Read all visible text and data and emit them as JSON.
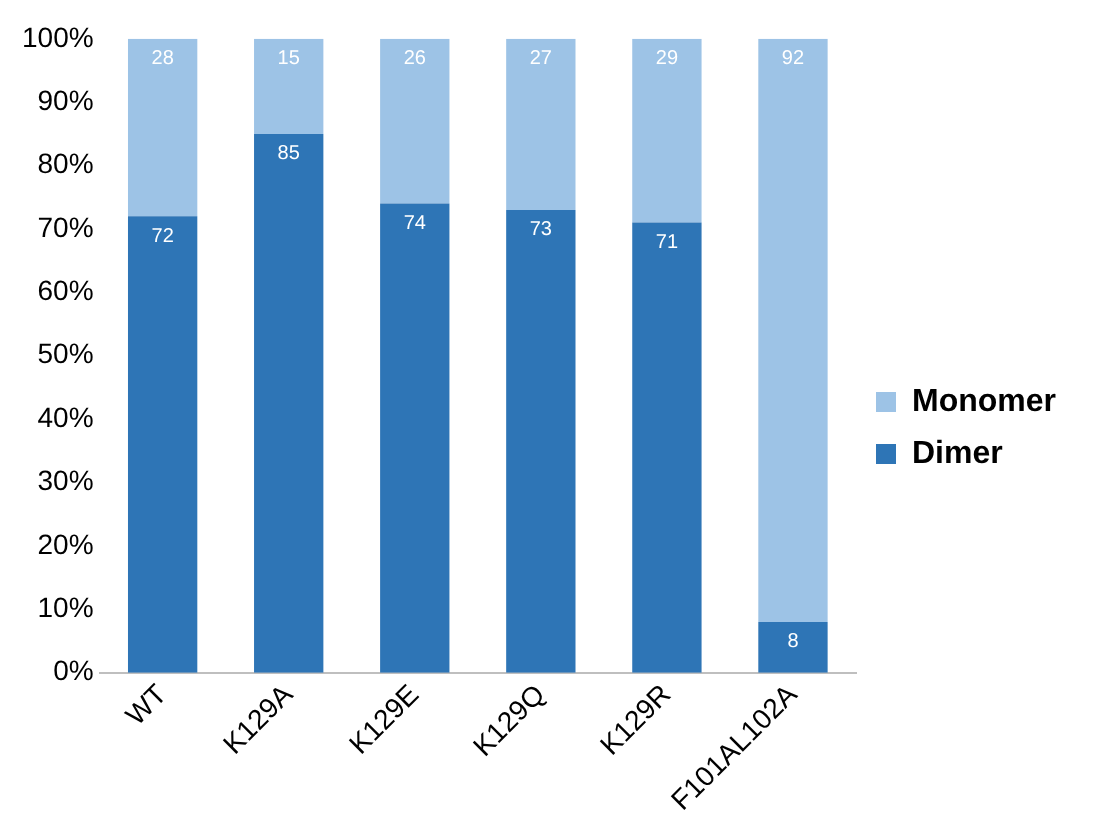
{
  "chart_data": {
    "type": "bar",
    "stacked": true,
    "categories": [
      "WT",
      "K129A",
      "K129E",
      "K129Q",
      "K129R",
      "F101AL102A"
    ],
    "series": [
      {
        "name": "Dimer",
        "color": "#2e75b6",
        "values": [
          72,
          85,
          74,
          73,
          71,
          8
        ]
      },
      {
        "name": "Monomer",
        "color": "#9dc3e6",
        "values": [
          28,
          15,
          26,
          27,
          29,
          92
        ]
      }
    ],
    "ylim": [
      0,
      100
    ],
    "yticks": [
      {
        "value": 0,
        "label": "0%"
      },
      {
        "value": 10,
        "label": "10%"
      },
      {
        "value": 20,
        "label": "20%"
      },
      {
        "value": 30,
        "label": "30%"
      },
      {
        "value": 40,
        "label": "40%"
      },
      {
        "value": 50,
        "label": "50%"
      },
      {
        "value": 60,
        "label": "60%"
      },
      {
        "value": 70,
        "label": "70%"
      },
      {
        "value": 80,
        "label": "80%"
      },
      {
        "value": 90,
        "label": "90%"
      },
      {
        "value": 100,
        "label": "100%"
      }
    ],
    "grid": false,
    "legend": "right",
    "data_labels": true
  }
}
